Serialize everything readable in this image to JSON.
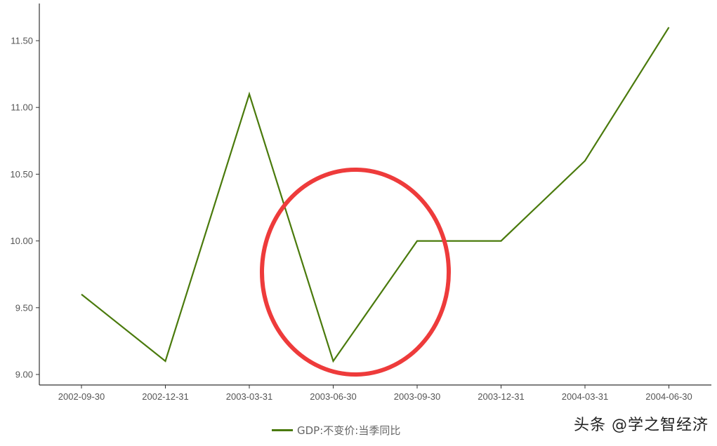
{
  "chart_data": {
    "type": "line",
    "categories": [
      "2002-09-30",
      "2002-12-31",
      "2003-03-31",
      "2003-06-30",
      "2003-09-30",
      "2003-12-31",
      "2004-03-31",
      "2004-06-30"
    ],
    "series": [
      {
        "name": "GDP:不变价:当季同比",
        "values": [
          9.6,
          9.1,
          11.1,
          9.1,
          10.0,
          10.0,
          10.6,
          11.6
        ],
        "color": "#4a7a0c"
      }
    ],
    "yticks": [
      "9.00",
      "9.50",
      "10.00",
      "10.50",
      "11.00",
      "11.50"
    ],
    "ylim": [
      9.0,
      11.5
    ],
    "grid": false,
    "legend_position": "bottom-center",
    "annotation_color": "#ee3b3b"
  },
  "watermark": "头条 @学之智经济"
}
